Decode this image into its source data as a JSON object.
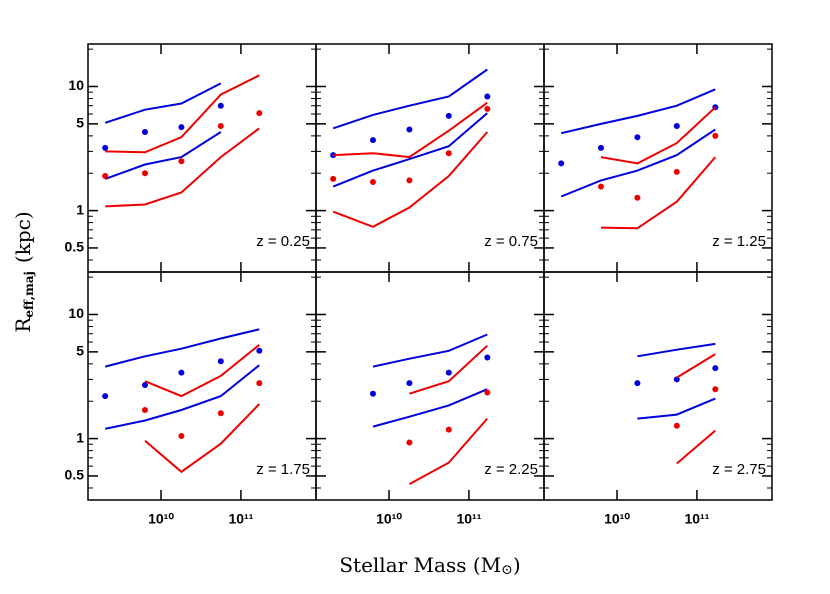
{
  "axes": {
    "ylabel": [
      "R",
      "eff,maj",
      "(kpc)"
    ],
    "xlabel": [
      "Stellar Mass (M",
      "⊙",
      ")"
    ]
  },
  "chart_data": [
    {
      "type": "line",
      "annotation": "z = 0.25",
      "log": true,
      "x": [
        2000000000.0,
        6300000000.0,
        18000000000.0,
        56000000000.0,
        170000000000.0
      ],
      "xlim": [
        1220000000.0,
        870000000000.0
      ],
      "ylim": [
        0.32,
        22
      ],
      "xticks": [
        10000000000.0,
        100000000000.0
      ],
      "yticks": [
        0.5,
        1,
        5,
        10
      ],
      "yminorticks": [
        0.4,
        0.6,
        0.7,
        0.8,
        0.9,
        2,
        3,
        4,
        6,
        7,
        8,
        9,
        20
      ],
      "series": [
        {
          "color": "#0000dd",
          "style": "line",
          "values": [
            5.1,
            6.5,
            7.3,
            10.6,
            null
          ]
        },
        {
          "color": "#0000dd",
          "style": "dots",
          "values": [
            3.2,
            4.3,
            4.7,
            7.0,
            null
          ]
        },
        {
          "color": "#0000dd",
          "style": "line",
          "values": [
            1.8,
            2.35,
            2.7,
            4.3,
            null
          ]
        },
        {
          "color": "#ee0000",
          "style": "line",
          "values": [
            3.0,
            2.95,
            3.9,
            8.6,
            12.3
          ]
        },
        {
          "color": "#ee0000",
          "style": "dots",
          "values": [
            1.9,
            2.0,
            2.5,
            4.8,
            6.1
          ]
        },
        {
          "color": "#ee0000",
          "style": "line",
          "values": [
            1.08,
            1.12,
            1.4,
            2.7,
            4.6
          ]
        }
      ]
    },
    {
      "type": "line",
      "annotation": "z = 0.75",
      "log": true,
      "x": [
        2000000000.0,
        6300000000.0,
        18000000000.0,
        56000000000.0,
        170000000000.0
      ],
      "xlim": [
        1220000000.0,
        870000000000.0
      ],
      "ylim": [
        0.32,
        22
      ],
      "xticks": [
        10000000000.0,
        100000000000.0
      ],
      "yticks": [
        0.5,
        1,
        5,
        10
      ],
      "yminorticks": [
        0.4,
        0.6,
        0.7,
        0.8,
        0.9,
        2,
        3,
        4,
        6,
        7,
        8,
        9,
        20
      ],
      "series": [
        {
          "color": "#0000dd",
          "style": "line",
          "values": [
            4.6,
            5.9,
            7.0,
            8.3,
            13.7
          ]
        },
        {
          "color": "#0000dd",
          "style": "dots",
          "values": [
            2.8,
            3.7,
            4.5,
            5.8,
            8.3
          ]
        },
        {
          "color": "#0000dd",
          "style": "line",
          "values": [
            1.56,
            2.1,
            2.6,
            3.3,
            6.1
          ]
        },
        {
          "color": "#ee0000",
          "style": "line",
          "values": [
            2.8,
            2.9,
            2.7,
            4.4,
            7.4
          ]
        },
        {
          "color": "#ee0000",
          "style": "dots",
          "values": [
            1.8,
            1.7,
            1.75,
            2.9,
            6.6
          ]
        },
        {
          "color": "#ee0000",
          "style": "line",
          "values": [
            0.98,
            0.74,
            1.06,
            1.9,
            4.3
          ]
        }
      ]
    },
    {
      "type": "line",
      "annotation": "z = 1.25",
      "log": true,
      "x": [
        2000000000.0,
        6300000000.0,
        18000000000.0,
        56000000000.0,
        170000000000.0
      ],
      "xlim": [
        1220000000.0,
        870000000000.0
      ],
      "ylim": [
        0.32,
        22
      ],
      "xticks": [
        10000000000.0,
        100000000000.0
      ],
      "yticks": [
        0.5,
        1,
        5,
        10
      ],
      "yminorticks": [
        0.4,
        0.6,
        0.7,
        0.8,
        0.9,
        2,
        3,
        4,
        6,
        7,
        8,
        9,
        20
      ],
      "series": [
        {
          "color": "#0000dd",
          "style": "line",
          "values": [
            4.2,
            5.0,
            5.8,
            7.0,
            9.5
          ]
        },
        {
          "color": "#0000dd",
          "style": "dots",
          "values": [
            2.4,
            3.2,
            3.9,
            4.8,
            6.8
          ]
        },
        {
          "color": "#0000dd",
          "style": "line",
          "values": [
            1.3,
            1.75,
            2.1,
            2.8,
            4.5
          ]
        },
        {
          "color": "#ee0000",
          "style": "line",
          "values": [
            null,
            2.7,
            2.4,
            3.5,
            6.8
          ]
        },
        {
          "color": "#ee0000",
          "style": "dots",
          "values": [
            null,
            1.56,
            1.27,
            2.05,
            4.0
          ]
        },
        {
          "color": "#ee0000",
          "style": "line",
          "values": [
            null,
            0.73,
            0.72,
            1.18,
            2.7
          ]
        }
      ]
    },
    {
      "type": "line",
      "annotation": "z = 1.75",
      "log": true,
      "x": [
        2000000000.0,
        6300000000.0,
        18000000000.0,
        56000000000.0,
        170000000000.0
      ],
      "xlim": [
        1220000000.0,
        870000000000.0
      ],
      "ylim": [
        0.32,
        22
      ],
      "xticks": [
        {
          "value": 10000000000.0,
          "label": "10¹⁰"
        },
        {
          "value": 100000000000.0,
          "label": "10¹¹"
        }
      ],
      "yticks": [
        0.5,
        1,
        5,
        10
      ],
      "yminorticks": [
        0.4,
        0.6,
        0.7,
        0.8,
        0.9,
        2,
        3,
        4,
        6,
        7,
        8,
        9,
        20
      ],
      "series": [
        {
          "color": "#0000dd",
          "style": "line",
          "values": [
            3.8,
            4.6,
            5.3,
            6.4,
            7.6
          ]
        },
        {
          "color": "#0000dd",
          "style": "dots",
          "values": [
            2.2,
            2.7,
            3.4,
            4.2,
            5.1
          ]
        },
        {
          "color": "#0000dd",
          "style": "line",
          "values": [
            1.2,
            1.4,
            1.7,
            2.2,
            3.9
          ]
        },
        {
          "color": "#ee0000",
          "style": "line",
          "values": [
            null,
            2.9,
            2.2,
            3.2,
            5.7
          ]
        },
        {
          "color": "#ee0000",
          "style": "dots",
          "values": [
            null,
            1.7,
            1.05,
            1.6,
            2.8
          ]
        },
        {
          "color": "#ee0000",
          "style": "line",
          "values": [
            null,
            0.96,
            0.54,
            0.91,
            1.9
          ]
        }
      ]
    },
    {
      "type": "line",
      "annotation": "z = 2.25",
      "log": true,
      "x": [
        2000000000.0,
        6300000000.0,
        18000000000.0,
        56000000000.0,
        170000000000.0
      ],
      "xlim": [
        1220000000.0,
        870000000000.0
      ],
      "ylim": [
        0.32,
        22
      ],
      "xticks": [
        {
          "value": 10000000000.0,
          "label": "10¹⁰"
        },
        {
          "value": 100000000000.0,
          "label": "10¹¹"
        }
      ],
      "yticks": [
        0.5,
        1,
        5,
        10
      ],
      "yminorticks": [
        0.4,
        0.6,
        0.7,
        0.8,
        0.9,
        2,
        3,
        4,
        6,
        7,
        8,
        9,
        20
      ],
      "series": [
        {
          "color": "#0000dd",
          "style": "line",
          "values": [
            null,
            3.8,
            4.4,
            5.1,
            6.9
          ]
        },
        {
          "color": "#0000dd",
          "style": "dots",
          "values": [
            null,
            2.3,
            2.8,
            3.4,
            4.5
          ]
        },
        {
          "color": "#0000dd",
          "style": "line",
          "values": [
            null,
            1.25,
            1.5,
            1.85,
            2.5
          ]
        },
        {
          "color": "#ee0000",
          "style": "line",
          "values": [
            null,
            null,
            2.3,
            2.9,
            5.6
          ]
        },
        {
          "color": "#ee0000",
          "style": "dots",
          "values": [
            null,
            null,
            0.93,
            1.18,
            2.35
          ]
        },
        {
          "color": "#ee0000",
          "style": "line",
          "values": [
            null,
            null,
            0.43,
            0.64,
            1.45
          ]
        }
      ]
    },
    {
      "type": "line",
      "annotation": "z = 2.75",
      "log": true,
      "x": [
        2000000000.0,
        6300000000.0,
        18000000000.0,
        56000000000.0,
        170000000000.0
      ],
      "xlim": [
        1220000000.0,
        870000000000.0
      ],
      "ylim": [
        0.32,
        22
      ],
      "xticks": [
        {
          "value": 10000000000.0,
          "label": "10¹⁰"
        },
        {
          "value": 100000000000.0,
          "label": "10¹¹"
        }
      ],
      "yticks": [
        0.5,
        1,
        5,
        10
      ],
      "yminorticks": [
        0.4,
        0.6,
        0.7,
        0.8,
        0.9,
        2,
        3,
        4,
        6,
        7,
        8,
        9,
        20
      ],
      "series": [
        {
          "color": "#0000dd",
          "style": "line",
          "values": [
            null,
            null,
            4.6,
            5.2,
            5.8
          ]
        },
        {
          "color": "#0000dd",
          "style": "dots",
          "values": [
            null,
            null,
            2.8,
            3.0,
            3.7
          ]
        },
        {
          "color": "#0000dd",
          "style": "line",
          "values": [
            null,
            null,
            1.45,
            1.56,
            2.1
          ]
        },
        {
          "color": "#ee0000",
          "style": "line",
          "values": [
            null,
            null,
            null,
            3.1,
            4.8
          ]
        },
        {
          "color": "#ee0000",
          "style": "dots",
          "values": [
            null,
            null,
            null,
            1.27,
            2.5
          ]
        },
        {
          "color": "#ee0000",
          "style": "line",
          "values": [
            null,
            null,
            null,
            0.63,
            1.16
          ]
        }
      ]
    }
  ]
}
